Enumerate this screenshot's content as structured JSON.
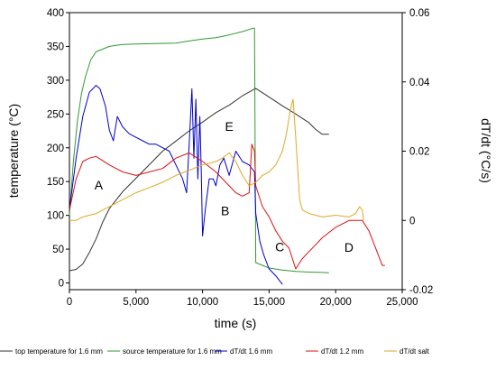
{
  "chart_data": {
    "type": "line",
    "xlabel": "time (s)",
    "ylabel_left": "temperature (°C)",
    "ylabel_right": "dT/dt (°C/s)",
    "xlim": [
      0,
      25000
    ],
    "ylim_left": [
      -10,
      400
    ],
    "ylim_right": [
      -0.02,
      0.06
    ],
    "x_ticks": [
      {
        "value": 0,
        "label": "0"
      },
      {
        "value": 5000,
        "label": "5,000"
      },
      {
        "value": 10000,
        "label": "10,000"
      },
      {
        "value": 15000,
        "label": "15,000"
      },
      {
        "value": 20000,
        "label": "20,000"
      },
      {
        "value": 25000,
        "label": "25,000"
      }
    ],
    "y_left_ticks": [
      {
        "value": 0,
        "label": "0"
      },
      {
        "value": 50,
        "label": "50"
      },
      {
        "value": 100,
        "label": "100"
      },
      {
        "value": 150,
        "label": "150"
      },
      {
        "value": 200,
        "label": "200"
      },
      {
        "value": 250,
        "label": "250"
      },
      {
        "value": 300,
        "label": "300"
      },
      {
        "value": 350,
        "label": "350"
      },
      {
        "value": 400,
        "label": "400"
      }
    ],
    "y_right_ticks": [
      {
        "value": -0.02,
        "label": "-0.02"
      },
      {
        "value": 0,
        "label": "0"
      },
      {
        "value": 0.02,
        "label": "0.02"
      },
      {
        "value": 0.04,
        "label": "0.04"
      },
      {
        "value": 0.06,
        "label": "0.06"
      }
    ],
    "legend_position": "bottom",
    "series": [
      {
        "name": "top temperature for 1.6 mm",
        "color": "#333333",
        "axis": "left",
        "points": [
          [
            0,
            18
          ],
          [
            500,
            20
          ],
          [
            1000,
            28
          ],
          [
            1500,
            45
          ],
          [
            2000,
            65
          ],
          [
            2500,
            90
          ],
          [
            3000,
            110
          ],
          [
            4000,
            135
          ],
          [
            5000,
            155
          ],
          [
            6000,
            175
          ],
          [
            7000,
            195
          ],
          [
            8000,
            210
          ],
          [
            9000,
            225
          ],
          [
            10000,
            238
          ],
          [
            11000,
            252
          ],
          [
            12000,
            263
          ],
          [
            13000,
            277
          ],
          [
            14000,
            288
          ],
          [
            15000,
            275
          ],
          [
            16000,
            262
          ],
          [
            17000,
            250
          ],
          [
            18000,
            237
          ],
          [
            18500,
            227
          ],
          [
            19000,
            220
          ],
          [
            19500,
            220
          ]
        ]
      },
      {
        "name": "source temperature for 1.6 mm",
        "color": "#339933",
        "axis": "left",
        "points": [
          [
            0,
            100
          ],
          [
            300,
            180
          ],
          [
            600,
            240
          ],
          [
            900,
            280
          ],
          [
            1200,
            305
          ],
          [
            1600,
            330
          ],
          [
            2000,
            342
          ],
          [
            3000,
            350
          ],
          [
            4000,
            353
          ],
          [
            6000,
            354
          ],
          [
            8000,
            355
          ],
          [
            9000,
            358
          ],
          [
            10000,
            361
          ],
          [
            11000,
            363
          ],
          [
            12000,
            367
          ],
          [
            13000,
            372
          ],
          [
            13800,
            377
          ],
          [
            13900,
            377
          ],
          [
            14000,
            30
          ],
          [
            15000,
            22
          ],
          [
            16000,
            19
          ],
          [
            17000,
            17
          ],
          [
            18000,
            16
          ],
          [
            19000,
            15.5
          ],
          [
            19500,
            15
          ]
        ]
      },
      {
        "name": "dT/dt 1.6 mm",
        "color": "#0000cc",
        "axis": "right",
        "points": [
          [
            0,
            0.003
          ],
          [
            500,
            0.018
          ],
          [
            1000,
            0.03
          ],
          [
            1500,
            0.037
          ],
          [
            2000,
            0.039
          ],
          [
            2300,
            0.038
          ],
          [
            2700,
            0.033
          ],
          [
            3000,
            0.026
          ],
          [
            3300,
            0.023
          ],
          [
            3600,
            0.03
          ],
          [
            4000,
            0.027
          ],
          [
            4500,
            0.025
          ],
          [
            5000,
            0.024
          ],
          [
            5500,
            0.023
          ],
          [
            6000,
            0.022
          ],
          [
            6500,
            0.022
          ],
          [
            7000,
            0.021
          ],
          [
            7500,
            0.02
          ],
          [
            8000,
            0.016
          ],
          [
            8500,
            0.012
          ],
          [
            8800,
            0.008
          ],
          [
            9000,
            0.022
          ],
          [
            9200,
            0.038
          ],
          [
            9350,
            0.018
          ],
          [
            9500,
            0.035
          ],
          [
            9650,
            0.012
          ],
          [
            9800,
            0.03
          ],
          [
            9900,
            0.015
          ],
          [
            10000,
            -0.0045
          ],
          [
            10200,
            0.003
          ],
          [
            10500,
            0.012
          ],
          [
            10800,
            0.012
          ],
          [
            11000,
            0.01
          ],
          [
            11300,
            0.016
          ],
          [
            11600,
            0.018
          ],
          [
            12000,
            0.013
          ],
          [
            12500,
            0.02
          ],
          [
            13000,
            0.017
          ],
          [
            13500,
            0.016
          ],
          [
            13900,
            0.014
          ],
          [
            14000,
            0.002
          ],
          [
            14300,
            -0.006
          ],
          [
            14600,
            -0.01
          ],
          [
            15000,
            -0.014
          ],
          [
            15500,
            -0.016
          ],
          [
            16000,
            -0.0185
          ]
        ]
      },
      {
        "name": "dT/dt 1.2 mm",
        "color": "#dd1111",
        "axis": "right",
        "points": [
          [
            0,
            0.003
          ],
          [
            500,
            0.012
          ],
          [
            1000,
            0.017
          ],
          [
            1500,
            0.018
          ],
          [
            2000,
            0.0185
          ],
          [
            3000,
            0.016
          ],
          [
            4000,
            0.014
          ],
          [
            5000,
            0.013
          ],
          [
            6000,
            0.014
          ],
          [
            7000,
            0.015
          ],
          [
            8000,
            0.018
          ],
          [
            9000,
            0.0195
          ],
          [
            10000,
            0.017
          ],
          [
            11000,
            0.014
          ],
          [
            12000,
            0.01
          ],
          [
            12500,
            0.008
          ],
          [
            13000,
            0.007
          ],
          [
            13500,
            0.008
          ],
          [
            13700,
            0.022
          ],
          [
            13900,
            0.02
          ],
          [
            14000,
            0.01
          ],
          [
            14500,
            0.004
          ],
          [
            15000,
            0.001
          ],
          [
            15500,
            -0.003
          ],
          [
            16000,
            -0.006
          ],
          [
            16500,
            -0.008
          ],
          [
            17000,
            -0.014
          ],
          [
            17500,
            -0.011
          ],
          [
            18000,
            -0.009
          ],
          [
            19000,
            -0.005
          ],
          [
            20000,
            -0.002
          ],
          [
            21000,
            0
          ],
          [
            22000,
            0
          ],
          [
            22500,
            -0.003
          ],
          [
            23000,
            -0.008
          ],
          [
            23500,
            -0.013
          ],
          [
            23700,
            -0.013
          ]
        ]
      },
      {
        "name": "dT/dt salt",
        "color": "#ddaa22",
        "axis": "right",
        "points": [
          [
            0,
            0
          ],
          [
            500,
            0
          ],
          [
            1000,
            0.001
          ],
          [
            2000,
            0.002
          ],
          [
            3000,
            0.004
          ],
          [
            4000,
            0.006
          ],
          [
            5000,
            0.008
          ],
          [
            6000,
            0.0095
          ],
          [
            7000,
            0.011
          ],
          [
            8000,
            0.013
          ],
          [
            9000,
            0.0145
          ],
          [
            10000,
            0.016
          ],
          [
            11000,
            0.017
          ],
          [
            11500,
            0.018
          ],
          [
            12000,
            0.0195
          ],
          [
            12500,
            0.017
          ],
          [
            13000,
            0.013
          ],
          [
            13500,
            0.01
          ],
          [
            14000,
            0.011
          ],
          [
            14500,
            0.013
          ],
          [
            15000,
            0.014
          ],
          [
            15500,
            0.016
          ],
          [
            16000,
            0.02
          ],
          [
            16300,
            0.025
          ],
          [
            16600,
            0.032
          ],
          [
            16800,
            0.035
          ],
          [
            17000,
            0.024
          ],
          [
            17300,
            0.006
          ],
          [
            17500,
            0.003
          ],
          [
            18000,
            0.002
          ],
          [
            19000,
            0.001
          ],
          [
            20000,
            0.0015
          ],
          [
            21000,
            0.001
          ],
          [
            21500,
            0.002
          ],
          [
            21800,
            0.004
          ],
          [
            22000,
            0.003
          ],
          [
            22100,
            0.0
          ]
        ]
      }
    ],
    "annotations": [
      {
        "label": "A",
        "x": 2200,
        "y_left": 138
      },
      {
        "label": "B",
        "x": 11700,
        "y_left": 100
      },
      {
        "label": "C",
        "x": 15800,
        "y_left": 47
      },
      {
        "label": "D",
        "x": 21000,
        "y_left": 46
      },
      {
        "label": "E",
        "x": 12000,
        "y_left": 225
      }
    ]
  }
}
